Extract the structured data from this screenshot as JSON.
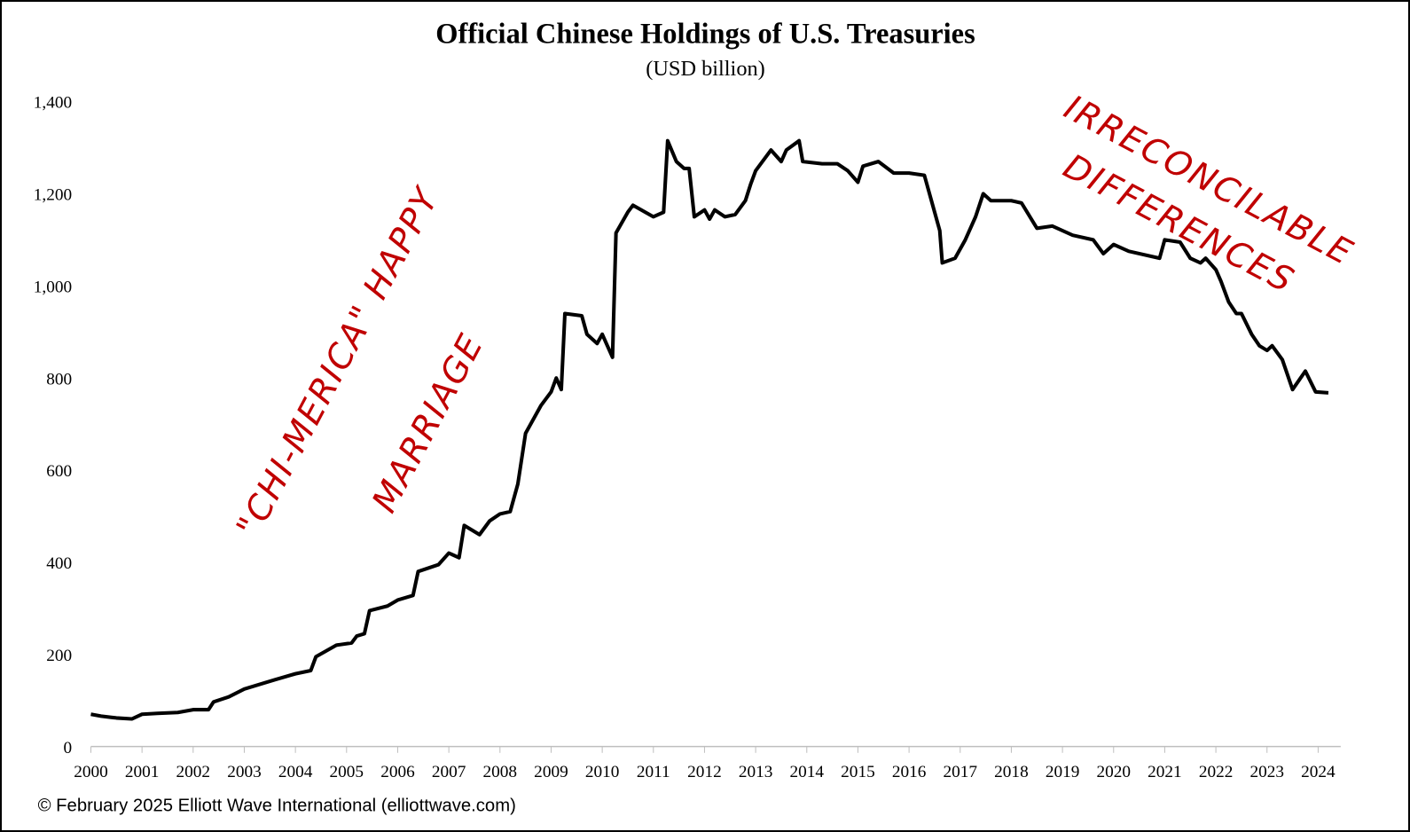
{
  "chart_data": {
    "type": "line",
    "title": "Official Chinese Holdings of U.S. Treasuries",
    "subtitle": "(USD billion)",
    "xlabel": "",
    "ylabel": "",
    "ylim": [
      0,
      1400
    ],
    "xlim": [
      2000,
      2024.4
    ],
    "y_ticks": [
      "0",
      "200",
      "400",
      "600",
      "800",
      "1,000",
      "1,200",
      "1,400"
    ],
    "y_tick_values": [
      0,
      200,
      400,
      600,
      800,
      1000,
      1200,
      1400
    ],
    "x_ticks": [
      "2000",
      "2001",
      "2002",
      "2003",
      "2004",
      "2005",
      "2006",
      "2007",
      "2008",
      "2009",
      "2010",
      "2011",
      "2012",
      "2013",
      "2014",
      "2015",
      "2016",
      "2017",
      "2018",
      "2019",
      "2020",
      "2021",
      "2022",
      "2023",
      "2024"
    ],
    "grid": false,
    "legend": "none",
    "series": [
      {
        "name": "Official Chinese Holdings of U.S. Treasuries",
        "color": "#000000",
        "x": [
          2000.0,
          2000.2,
          2000.5,
          2000.8,
          2001.0,
          2001.3,
          2001.7,
          2002.0,
          2002.3,
          2002.4,
          2002.7,
          2003.0,
          2003.3,
          2003.6,
          2004.0,
          2004.3,
          2004.4,
          2004.8,
          2005.1,
          2005.2,
          2005.35,
          2005.45,
          2005.8,
          2006.0,
          2006.3,
          2006.4,
          2006.8,
          2007.0,
          2007.2,
          2007.3,
          2007.6,
          2007.8,
          2008.0,
          2008.2,
          2008.35,
          2008.5,
          2008.8,
          2009.0,
          2009.1,
          2009.2,
          2009.27,
          2009.6,
          2009.7,
          2009.9,
          2010.0,
          2010.2,
          2010.27,
          2010.5,
          2010.6,
          2011.0,
          2011.2,
          2011.28,
          2011.45,
          2011.6,
          2011.7,
          2011.8,
          2012.0,
          2012.1,
          2012.2,
          2012.4,
          2012.6,
          2012.8,
          2012.9,
          2013.0,
          2013.3,
          2013.5,
          2013.6,
          2013.85,
          2013.92,
          2014.3,
          2014.6,
          2014.8,
          2015.0,
          2015.1,
          2015.4,
          2015.7,
          2016.0,
          2016.3,
          2016.5,
          2016.6,
          2016.65,
          2016.9,
          2017.1,
          2017.3,
          2017.45,
          2017.6,
          2018.0,
          2018.2,
          2018.5,
          2018.8,
          2019.2,
          2019.6,
          2019.8,
          2020.0,
          2020.3,
          2020.9,
          2021.0,
          2021.3,
          2021.5,
          2021.7,
          2021.8,
          2022.0,
          2022.1,
          2022.25,
          2022.4,
          2022.5,
          2022.7,
          2022.85,
          2023.0,
          2023.1,
          2023.3,
          2023.5,
          2023.75,
          2023.95,
          2024.2
        ],
        "y": [
          70,
          66,
          62,
          60,
          70,
          72,
          74,
          80,
          80,
          97,
          108,
          125,
          135,
          145,
          158,
          165,
          195,
          220,
          225,
          240,
          245,
          295,
          305,
          318,
          328,
          380,
          395,
          420,
          410,
          480,
          460,
          490,
          505,
          510,
          570,
          680,
          740,
          770,
          800,
          775,
          940,
          935,
          895,
          875,
          895,
          845,
          1115,
          1160,
          1175,
          1150,
          1160,
          1315,
          1270,
          1255,
          1255,
          1150,
          1165,
          1145,
          1165,
          1150,
          1155,
          1185,
          1220,
          1250,
          1295,
          1270,
          1295,
          1315,
          1270,
          1265,
          1265,
          1250,
          1225,
          1260,
          1270,
          1245,
          1245,
          1240,
          1160,
          1120,
          1050,
          1060,
          1100,
          1150,
          1200,
          1185,
          1185,
          1180,
          1125,
          1130,
          1110,
          1100,
          1070,
          1090,
          1075,
          1060,
          1100,
          1095,
          1060,
          1050,
          1060,
          1035,
          1010,
          965,
          940,
          940,
          895,
          870,
          860,
          870,
          840,
          775,
          815,
          770,
          768
        ]
      }
    ],
    "annotations": [
      {
        "lines": [
          "\"CHI-MERICA\" HAPPY",
          "MARRIAGE"
        ],
        "color": "#c00000"
      },
      {
        "lines": [
          "IRRECONCILABLE",
          "DIFFERENCES"
        ],
        "color": "#c00000"
      }
    ]
  },
  "footer": {
    "copyright": "© February 2025 Elliott Wave International (elliottwave.com)"
  }
}
